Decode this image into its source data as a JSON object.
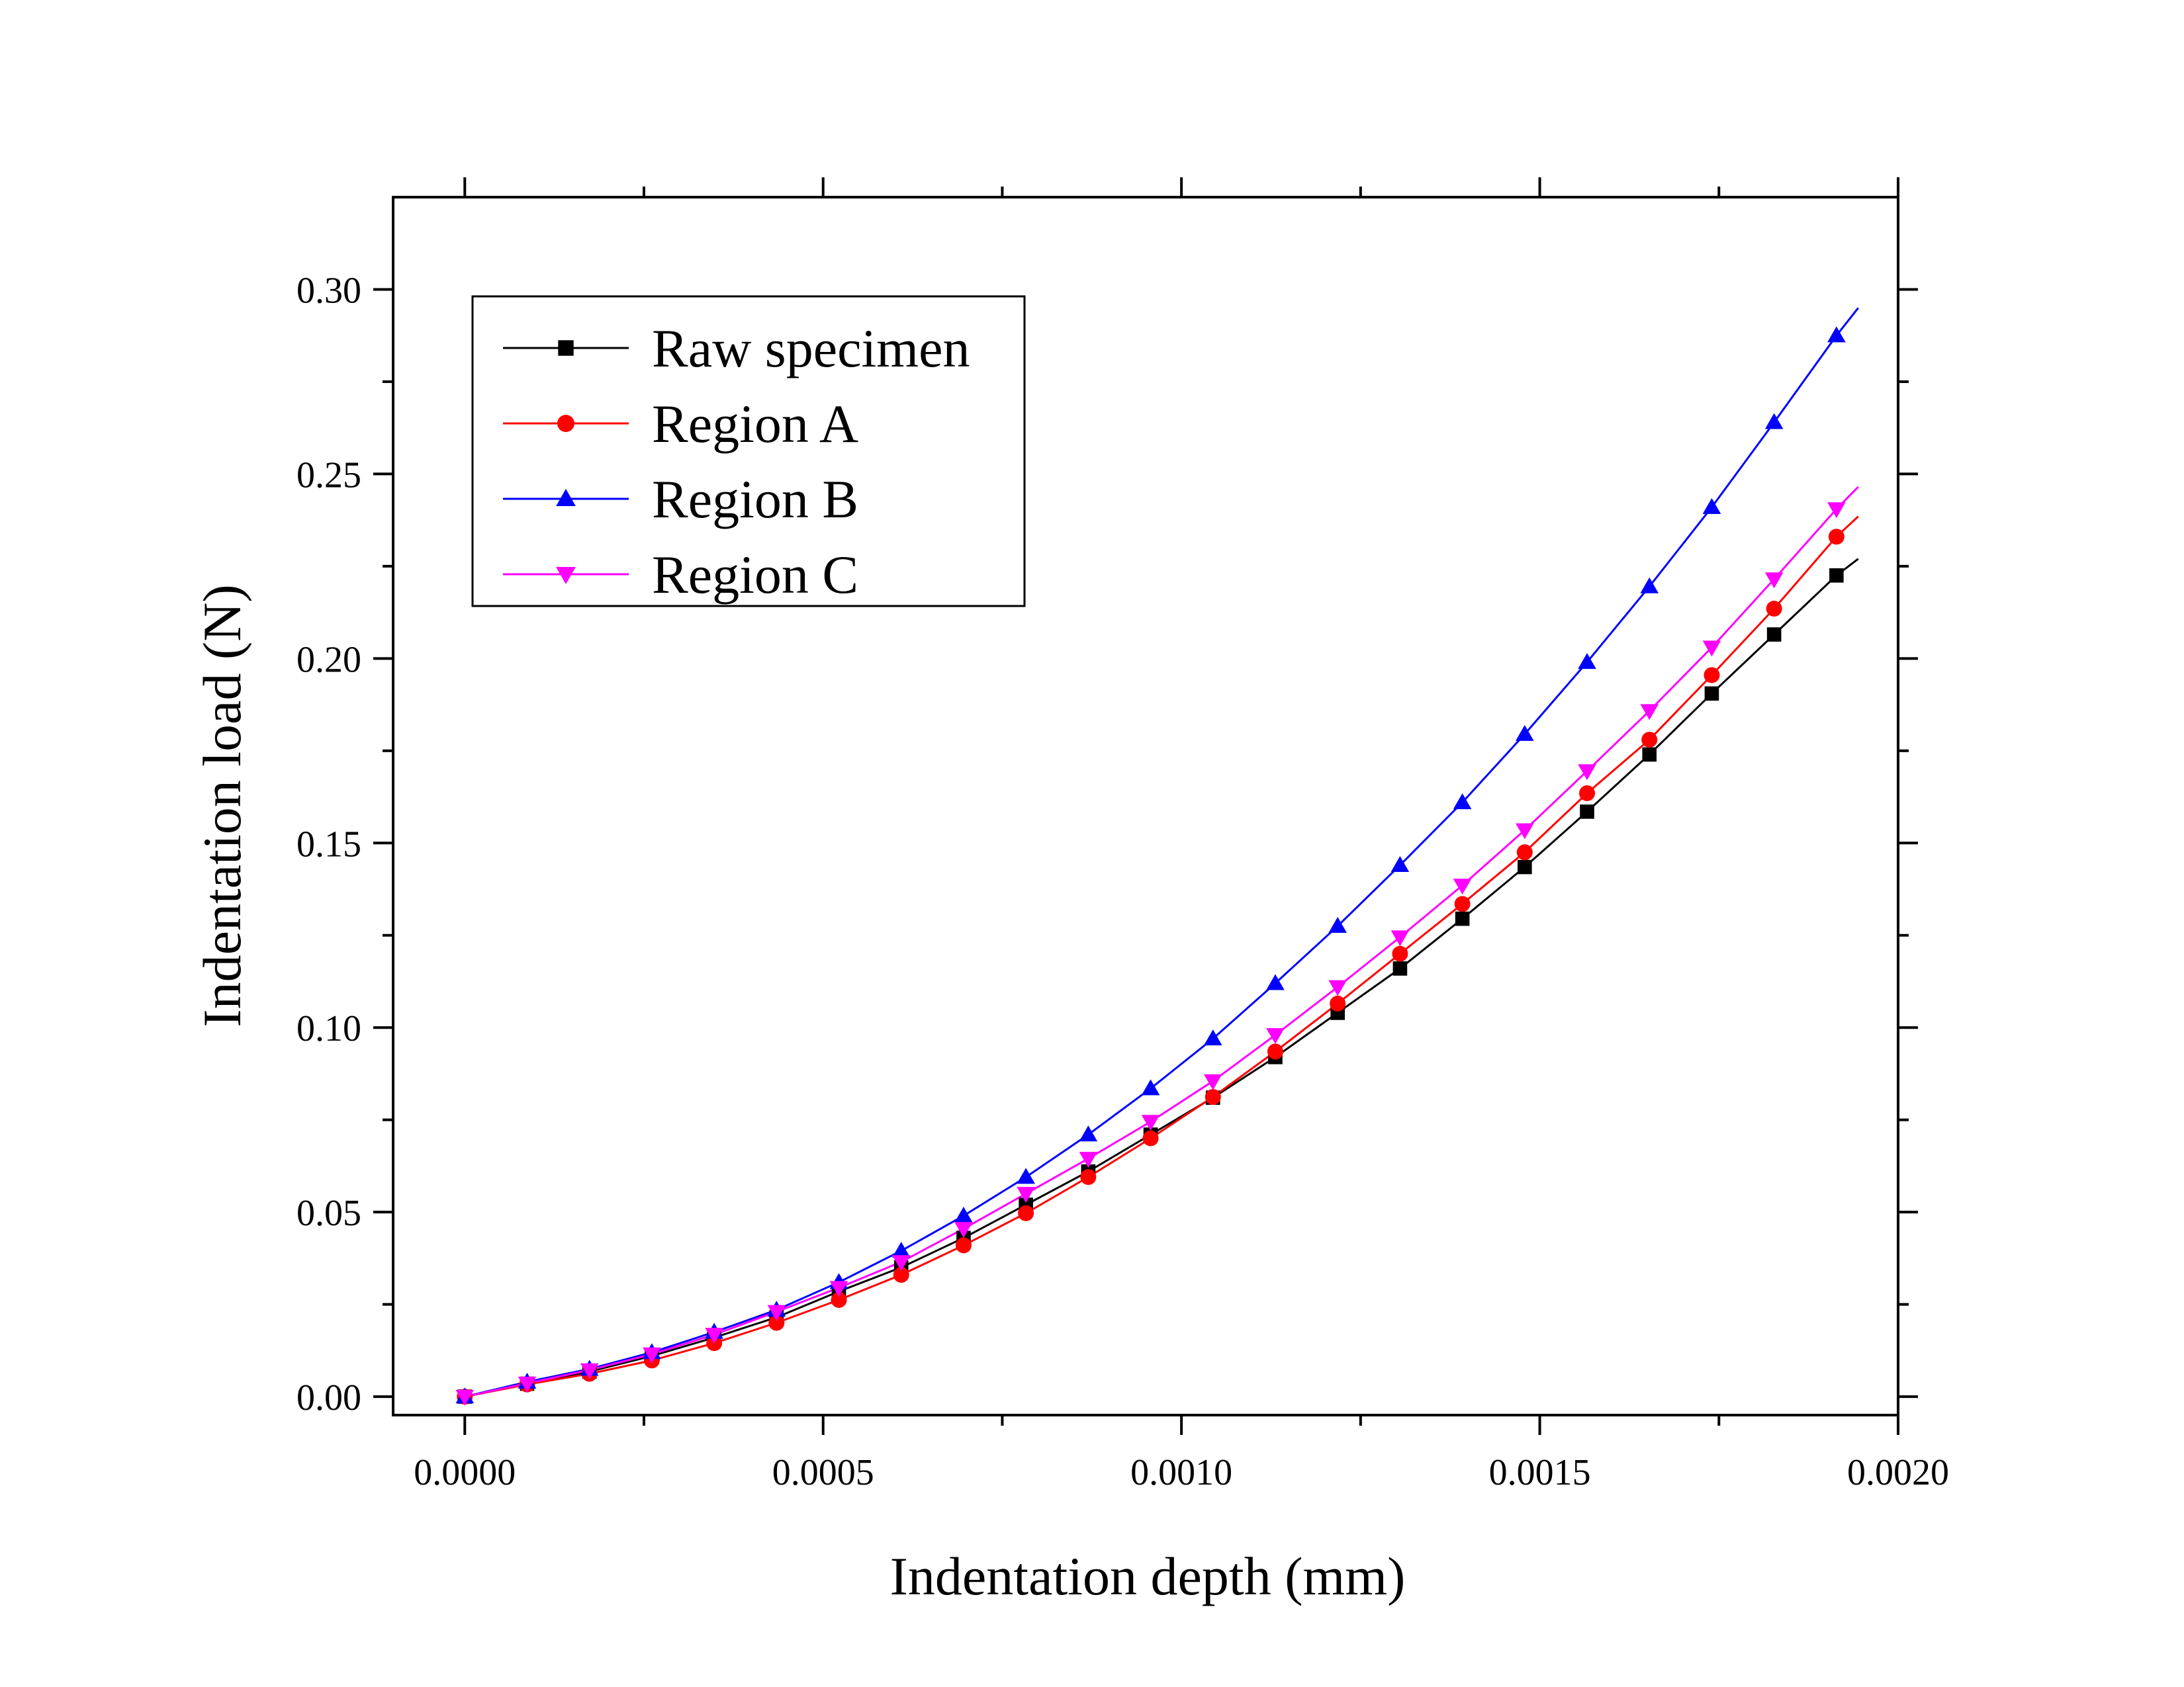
{
  "chart_data": {
    "type": "line",
    "title": "",
    "xlabel": "Indentation depth (mm)",
    "ylabel": "Indentation load (N)",
    "xlim": [
      -0.0001,
      0.002
    ],
    "ylim": [
      -0.005,
      0.325
    ],
    "x_ticks": [
      0.0,
      0.0005,
      0.001,
      0.0015,
      0.002
    ],
    "x_tick_labels": [
      "0.0000",
      "0.0005",
      "0.0010",
      "0.0015",
      "0.0020"
    ],
    "y_ticks": [
      0.0,
      0.05,
      0.1,
      0.15,
      0.2,
      0.25,
      0.3
    ],
    "y_tick_labels": [
      "0.00",
      "0.05",
      "0.10",
      "0.15",
      "0.20",
      "0.25",
      "0.30"
    ],
    "grid": false,
    "legend_position": "top-left",
    "x": [
      0.0,
      8.7e-05,
      0.000174,
      0.000261,
      0.000348,
      0.000435,
      0.000522,
      0.000609,
      0.000696,
      0.000783,
      0.00087,
      0.000957,
      0.001044,
      0.001131,
      0.001218,
      0.001305,
      0.001392,
      0.001479,
      0.001566,
      0.001653,
      0.00174,
      0.001827,
      0.001914
    ],
    "series": [
      {
        "name": "Raw specimen",
        "color": "#000000",
        "marker": "square",
        "values": [
          0.0,
          0.0035,
          0.0068,
          0.011,
          0.016,
          0.0215,
          0.0285,
          0.035,
          0.043,
          0.052,
          0.061,
          0.071,
          0.081,
          0.092,
          0.104,
          0.116,
          0.1295,
          0.1435,
          0.1585,
          0.174,
          0.1905,
          0.2065,
          0.2225
        ],
        "end_value": 0.227
      },
      {
        "name": "Region A",
        "color": "#ff0000",
        "marker": "circle",
        "values": [
          0.0,
          0.0033,
          0.0062,
          0.0098,
          0.0145,
          0.02,
          0.0262,
          0.033,
          0.041,
          0.0497,
          0.0595,
          0.07,
          0.0812,
          0.0935,
          0.1065,
          0.12,
          0.1335,
          0.1475,
          0.1635,
          0.178,
          0.1955,
          0.2135,
          0.233
        ],
        "end_value": 0.2385
      },
      {
        "name": "Region B",
        "color": "#0000ff",
        "marker": "triangle-up",
        "values": [
          0.0,
          0.004,
          0.0075,
          0.012,
          0.0175,
          0.0235,
          0.031,
          0.0395,
          0.049,
          0.0595,
          0.071,
          0.0835,
          0.097,
          0.112,
          0.1275,
          0.144,
          0.161,
          0.1795,
          0.199,
          0.2195,
          0.241,
          0.264,
          0.2875
        ],
        "end_value": 0.295
      },
      {
        "name": "Region C",
        "color": "#ff00ff",
        "marker": "triangle-down",
        "values": [
          0.0,
          0.0036,
          0.0072,
          0.0115,
          0.0168,
          0.023,
          0.0295,
          0.0365,
          0.0455,
          0.055,
          0.0645,
          0.0745,
          0.0855,
          0.098,
          0.111,
          0.1245,
          0.1385,
          0.1535,
          0.1695,
          0.1858,
          0.203,
          0.2215,
          0.2405
        ],
        "end_value": 0.2465
      }
    ]
  }
}
